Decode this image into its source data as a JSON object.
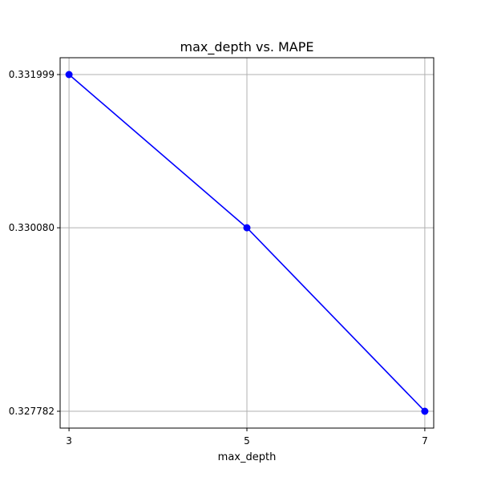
{
  "chart_data": {
    "type": "line",
    "title": "max_depth vs. MAPE",
    "xlabel": "max_depth",
    "ylabel": "",
    "x": [
      3,
      5,
      7
    ],
    "series": [
      {
        "values": [
          0.331999,
          0.33008,
          0.327782
        ],
        "color": "#0000ff",
        "marker": "circle"
      }
    ],
    "xticks": [
      3,
      5,
      7
    ],
    "xtick_labels": [
      "3",
      "5",
      "7"
    ],
    "yticks": [
      0.327782,
      0.33008,
      0.331999
    ],
    "ytick_labels": [
      "0.327782",
      "0.330080",
      "0.331999"
    ],
    "xlim": [
      2.9,
      7.1
    ],
    "ylim": [
      0.3275711,
      0.3322099
    ],
    "grid": true,
    "grid_color": "#b0b0b0"
  }
}
